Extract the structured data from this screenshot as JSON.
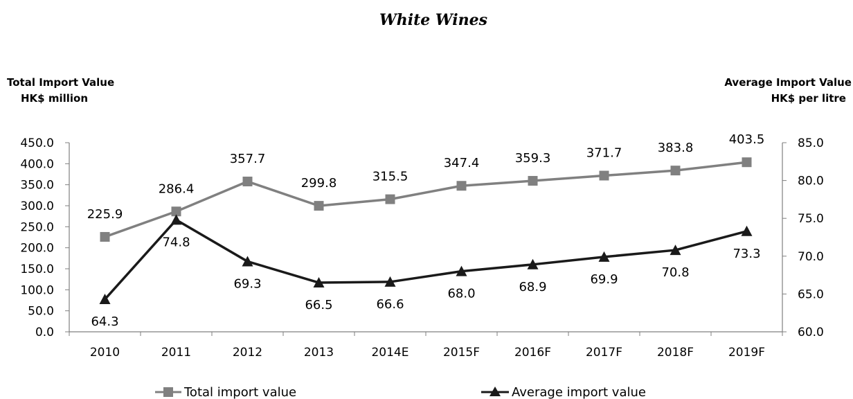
{
  "chart_data": {
    "type": "line",
    "title": "White Wines",
    "categories": [
      "2010",
      "2011",
      "2012",
      "2013",
      "2014E",
      "2015F",
      "2016F",
      "2017F",
      "2018F",
      "2019F"
    ],
    "y_left": {
      "title_line1": "Total Import Value",
      "title_line2": "HK$ million",
      "ylim": [
        0,
        450
      ],
      "ticks": [
        "0.0",
        "50.0",
        "100.0",
        "150.0",
        "200.0",
        "250.0",
        "300.0",
        "350.0",
        "400.0",
        "450.0"
      ]
    },
    "y_right": {
      "title_line1": "Average Import Value",
      "title_line2": "HK$ per litre",
      "ylim": [
        60,
        85
      ],
      "ticks": [
        "60.0",
        "65.0",
        "70.0",
        "75.0",
        "80.0",
        "85.0"
      ]
    },
    "series": [
      {
        "name": "Total import value",
        "axis": "left",
        "marker": "square",
        "color": "#808080",
        "values": [
          225.9,
          286.4,
          357.7,
          299.8,
          315.5,
          347.4,
          359.3,
          371.7,
          383.8,
          403.5
        ],
        "labels": [
          "225.9",
          "286.4",
          "357.7",
          "299.8",
          "315.5",
          "347.4",
          "359.3",
          "371.7",
          "383.8",
          "403.5"
        ]
      },
      {
        "name": "Average import value",
        "axis": "right",
        "marker": "triangle",
        "color": "#1a1a1a",
        "values": [
          64.3,
          74.8,
          69.3,
          66.5,
          66.6,
          68.0,
          68.9,
          69.9,
          70.8,
          73.3
        ],
        "labels": [
          "64.3",
          "74.8",
          "69.3",
          "66.5",
          "66.6",
          "68.0",
          "68.9",
          "69.9",
          "70.8",
          "73.3"
        ]
      }
    ],
    "grid": false,
    "legend_position": "bottom"
  }
}
